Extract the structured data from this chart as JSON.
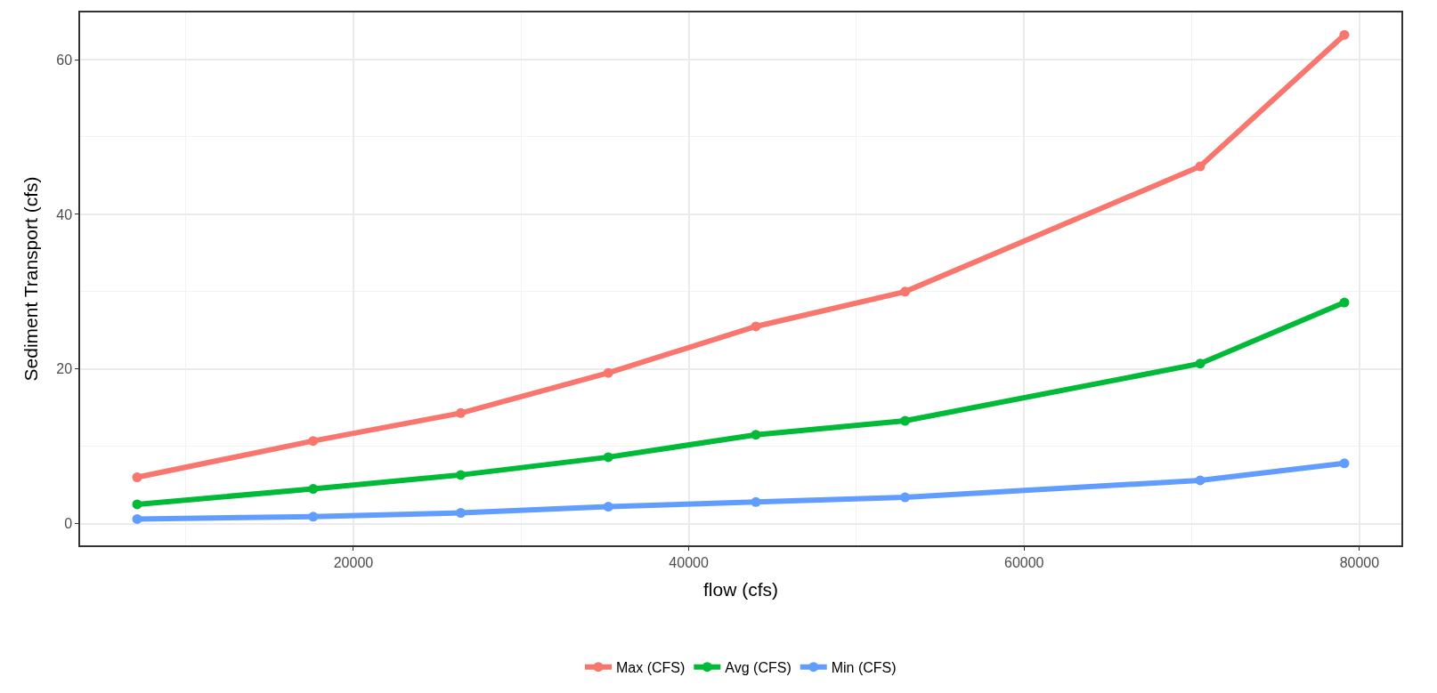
{
  "chart_data": {
    "type": "line",
    "xlabel": "flow (cfs)",
    "ylabel": "Sediment Transport (cfs)",
    "x": [
      7100,
      17600,
      26400,
      35200,
      44000,
      52900,
      70500,
      79100
    ],
    "series": [
      {
        "name": "Max (CFS)",
        "color": "#f8766d",
        "values": [
          6.0,
          10.7,
          14.3,
          19.5,
          25.5,
          30.0,
          46.2,
          63.2
        ]
      },
      {
        "name": "Avg (CFS)",
        "color": "#00ba38",
        "values": [
          2.5,
          4.5,
          6.3,
          8.6,
          11.5,
          13.3,
          20.7,
          28.6
        ]
      },
      {
        "name": "Min (CFS)",
        "color": "#619cff",
        "values": [
          0.6,
          0.9,
          1.4,
          2.2,
          2.8,
          3.4,
          5.6,
          7.8
        ]
      }
    ],
    "xlim": [
      3700,
      82500
    ],
    "xticks": [
      20000,
      40000,
      60000,
      80000
    ],
    "ylim": [
      -2.8,
      66.1
    ],
    "yticks": [
      0,
      20,
      40,
      60
    ],
    "grid": true,
    "legend": "bottom",
    "marker": "circle",
    "line_style": "solid"
  }
}
